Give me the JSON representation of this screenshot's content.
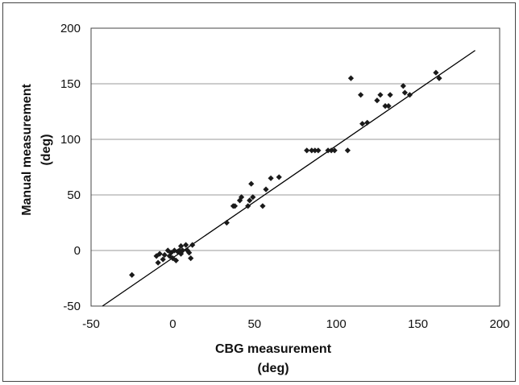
{
  "chart_data": {
    "type": "scatter",
    "xlabel": [
      "CBG measurement",
      "(deg)"
    ],
    "ylabel": [
      "Manual measurement",
      "(deg)"
    ],
    "xlim": [
      -50,
      200
    ],
    "ylim": [
      -50,
      200
    ],
    "xticks": [
      -50,
      0,
      50,
      100,
      150,
      200
    ],
    "yticks": [
      -50,
      0,
      50,
      100,
      150,
      200
    ],
    "grid": "horizontal",
    "legend": "none",
    "colors": {
      "marker": "#1a1a1a",
      "line": "#000000",
      "grid": "#9a9a9a",
      "axis": "#444444"
    },
    "fit_line": {
      "x": [
        -43,
        185
      ],
      "y": [
        -50,
        180
      ]
    },
    "series": [
      {
        "points": [
          [
            -25,
            -22
          ],
          [
            -10,
            -5
          ],
          [
            -9,
            -11
          ],
          [
            -8,
            -3
          ],
          [
            -6,
            -8
          ],
          [
            -5,
            -4
          ],
          [
            -3,
            0
          ],
          [
            -2,
            -5
          ],
          [
            -1,
            -2
          ],
          [
            0,
            -7
          ],
          [
            1,
            0
          ],
          [
            2,
            -9
          ],
          [
            3,
            -1
          ],
          [
            4,
            0
          ],
          [
            5,
            -3
          ],
          [
            5,
            4
          ],
          [
            6,
            0
          ],
          [
            8,
            5
          ],
          [
            9,
            0
          ],
          [
            10,
            -2
          ],
          [
            11,
            -7
          ],
          [
            12,
            5
          ],
          [
            33,
            25
          ],
          [
            37,
            40
          ],
          [
            38,
            40
          ],
          [
            41,
            45
          ],
          [
            42,
            48
          ],
          [
            46,
            40
          ],
          [
            47,
            45
          ],
          [
            48,
            60
          ],
          [
            49,
            48
          ],
          [
            55,
            40
          ],
          [
            57,
            55
          ],
          [
            60,
            65
          ],
          [
            65,
            66
          ],
          [
            82,
            90
          ],
          [
            85,
            90
          ],
          [
            87,
            90
          ],
          [
            89,
            90
          ],
          [
            95,
            90
          ],
          [
            97,
            90
          ],
          [
            99,
            90
          ],
          [
            107,
            90
          ],
          [
            109,
            155
          ],
          [
            115,
            140
          ],
          [
            116,
            114
          ],
          [
            119,
            115
          ],
          [
            125,
            135
          ],
          [
            127,
            140
          ],
          [
            130,
            130
          ],
          [
            132,
            130
          ],
          [
            133,
            140
          ],
          [
            141,
            148
          ],
          [
            142,
            142
          ],
          [
            145,
            140
          ],
          [
            161,
            160
          ],
          [
            163,
            155
          ]
        ]
      }
    ]
  }
}
